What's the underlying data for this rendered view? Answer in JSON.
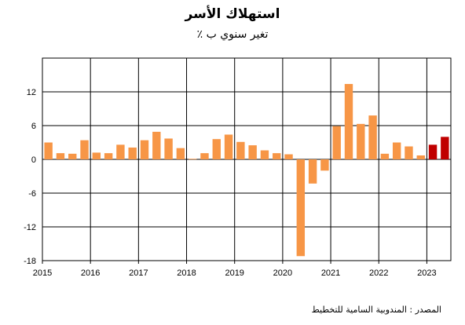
{
  "chart_data": {
    "type": "bar",
    "title": "استهلاك الأسر",
    "subtitle": "تغير سنوي ب ٪",
    "source": "المصدر : المندوبية السامية للتخطيط",
    "ylim": [
      -18,
      18
    ],
    "yticks": [
      -18,
      -12,
      -6,
      0,
      6,
      12
    ],
    "x_labels": [
      "2015",
      "2016",
      "2017",
      "2018",
      "2019",
      "2020",
      "2021",
      "2022",
      "2023"
    ],
    "grid": true,
    "categories": [
      "2015-Q1",
      "2015-Q2",
      "2015-Q3",
      "2015-Q4",
      "2016-Q1",
      "2016-Q2",
      "2016-Q3",
      "2016-Q4",
      "2017-Q1",
      "2017-Q2",
      "2017-Q3",
      "2017-Q4",
      "2018-Q1",
      "2018-Q2",
      "2018-Q3",
      "2018-Q4",
      "2019-Q1",
      "2019-Q2",
      "2019-Q3",
      "2019-Q4",
      "2020-Q1",
      "2020-Q2",
      "2020-Q3",
      "2020-Q4",
      "2021-Q1",
      "2021-Q2",
      "2021-Q3",
      "2021-Q4",
      "2022-Q1",
      "2022-Q2",
      "2022-Q3",
      "2022-Q4",
      "2023-Q1",
      "2023-Q2"
    ],
    "values": [
      3.0,
      1.1,
      1.0,
      3.4,
      1.2,
      1.1,
      2.6,
      2.1,
      3.4,
      4.9,
      3.7,
      2.0,
      0.1,
      1.1,
      3.6,
      4.4,
      3.1,
      2.5,
      1.6,
      1.1,
      0.9,
      -17.2,
      -4.3,
      -2.0,
      5.9,
      13.4,
      6.3,
      7.8,
      1.0,
      3.0,
      2.3,
      0.7,
      2.6,
      4.0
    ],
    "colors": {
      "default": "#f79646",
      "highlight": "#c00000"
    },
    "highlight_categories": [
      "2023-Q1",
      "2023-Q2"
    ]
  }
}
